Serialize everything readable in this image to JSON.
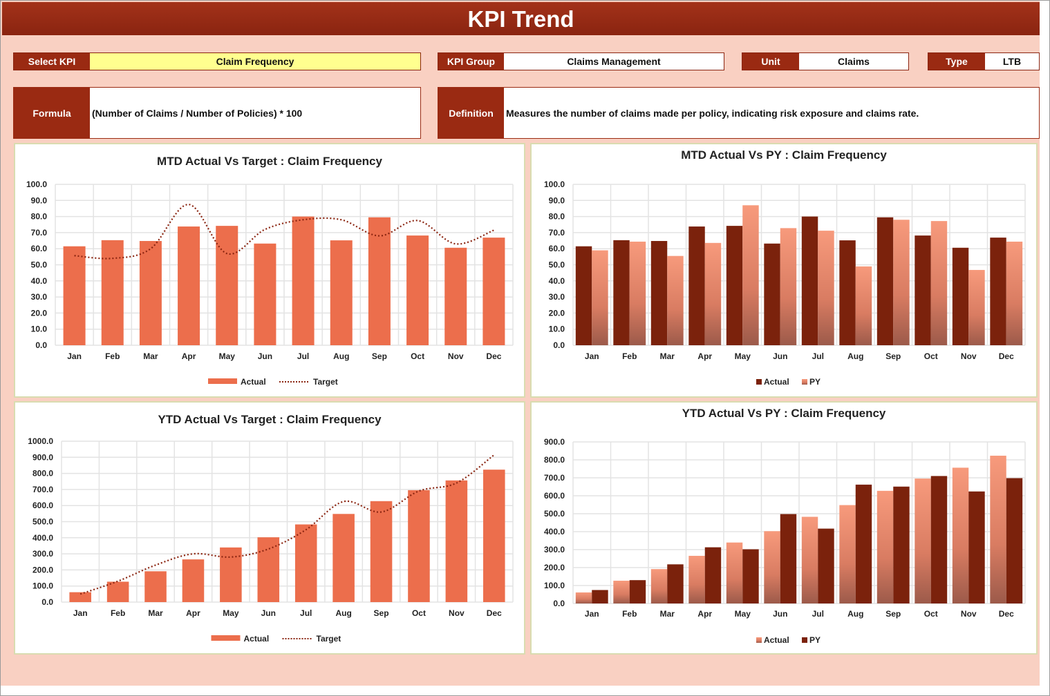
{
  "header": {
    "title": "KPI Trend"
  },
  "controls": {
    "select_kpi_label": "Select KPI",
    "select_kpi_value": "Claim Frequency",
    "kpi_group_label": "KPI Group",
    "kpi_group_value": "Claims Management",
    "unit_label": "Unit",
    "unit_value": "Claims",
    "type_label": "Type",
    "type_value": "LTB"
  },
  "info": {
    "formula_label": "Formula",
    "formula_value": "(Number of Claims / Number of Policies) * 100",
    "definition_label": "Definition",
    "definition_value": "Measures the number of claims made per policy, indicating risk exposure and claims rate."
  },
  "colors": {
    "accent": "#9a2a12",
    "actual_bar": "#ec6e4c",
    "dark_bar": "#7b220c",
    "light_bar": "#f4977a",
    "background": "#f9d0c2",
    "highlight": "#ffff8f"
  },
  "chart_data": [
    {
      "id": "mtd-target",
      "type": "bar",
      "title": "MTD Actual Vs Target : Claim Frequency",
      "categories": [
        "Jan",
        "Feb",
        "Mar",
        "Apr",
        "May",
        "Jun",
        "Jul",
        "Aug",
        "Sep",
        "Oct",
        "Nov",
        "Dec"
      ],
      "ylim": [
        0,
        100
      ],
      "yticks": [
        "0.0",
        "10.0",
        "20.0",
        "30.0",
        "40.0",
        "50.0",
        "60.0",
        "70.0",
        "80.0",
        "90.0",
        "100.0"
      ],
      "grid": true,
      "legend": "bottom",
      "series": [
        {
          "name": "Actual",
          "kind": "bar",
          "values": [
            61.5,
            65.3,
            64.8,
            73.8,
            74.2,
            63.2,
            80.0,
            65.2,
            79.5,
            68.2,
            60.6,
            66.9
          ]
        },
        {
          "name": "Target",
          "kind": "line",
          "values": [
            55.7,
            54.0,
            60.0,
            87.5,
            57.0,
            72.0,
            78.0,
            78.0,
            68.0,
            77.5,
            63.0,
            71.5
          ]
        }
      ]
    },
    {
      "id": "mtd-py",
      "type": "bar",
      "title": "MTD Actual Vs PY : Claim Frequency",
      "categories": [
        "Jan",
        "Feb",
        "Mar",
        "Apr",
        "May",
        "Jun",
        "Jul",
        "Aug",
        "Sep",
        "Oct",
        "Nov",
        "Dec"
      ],
      "ylim": [
        0,
        100
      ],
      "yticks": [
        "0.0",
        "10.0",
        "20.0",
        "30.0",
        "40.0",
        "50.0",
        "60.0",
        "70.0",
        "80.0",
        "90.0",
        "100.0"
      ],
      "grid": true,
      "legend": "bottom",
      "series": [
        {
          "name": "Actual",
          "kind": "bar",
          "values": [
            61.5,
            65.3,
            64.8,
            73.8,
            74.2,
            63.2,
            80.0,
            65.2,
            79.5,
            68.2,
            60.6,
            66.9
          ]
        },
        {
          "name": "PY",
          "kind": "bar",
          "values": [
            59.0,
            64.4,
            55.5,
            63.6,
            87.0,
            72.8,
            71.2,
            49.0,
            78.0,
            77.2,
            46.8,
            64.4
          ]
        }
      ]
    },
    {
      "id": "ytd-target",
      "type": "bar",
      "title": "YTD Actual Vs Target : Claim Frequency",
      "categories": [
        "Jan",
        "Feb",
        "Mar",
        "Apr",
        "May",
        "Jun",
        "Jul",
        "Aug",
        "Sep",
        "Oct",
        "Nov",
        "Dec"
      ],
      "ylim": [
        0,
        1000
      ],
      "yticks": [
        "0.0",
        "100.0",
        "200.0",
        "300.0",
        "400.0",
        "500.0",
        "600.0",
        "700.0",
        "800.0",
        "900.0",
        "1000.0"
      ],
      "grid": true,
      "legend": "bottom",
      "series": [
        {
          "name": "Actual",
          "kind": "bar",
          "values": [
            61.5,
            126.8,
            191.6,
            265.4,
            339.6,
            402.8,
            482.8,
            548.0,
            627.5,
            695.7,
            756.3,
            823.2
          ]
        },
        {
          "name": "Target",
          "kind": "line",
          "values": [
            50,
            130,
            230,
            300,
            280,
            330,
            450,
            625,
            560,
            690,
            740,
            915
          ]
        }
      ]
    },
    {
      "id": "ytd-py",
      "type": "bar",
      "title": "YTD Actual Vs PY : Claim Frequency",
      "categories": [
        "Jan",
        "Feb",
        "Mar",
        "Apr",
        "May",
        "Jun",
        "Jul",
        "Aug",
        "Sep",
        "Oct",
        "Nov",
        "Dec"
      ],
      "ylim": [
        0,
        900
      ],
      "yticks": [
        "0.0",
        "100.0",
        "200.0",
        "300.0",
        "400.0",
        "500.0",
        "600.0",
        "700.0",
        "800.0",
        "900.0"
      ],
      "grid": true,
      "legend": "bottom",
      "series": [
        {
          "name": "Actual",
          "kind": "bar",
          "values": [
            61.5,
            126.8,
            191.6,
            265.4,
            339.6,
            402.8,
            482.8,
            548.0,
            627.5,
            695.7,
            756.3,
            823.2
          ]
        },
        {
          "name": "PY",
          "kind": "bar",
          "values": [
            75,
            130,
            218,
            313,
            302,
            498,
            417,
            662,
            651,
            710,
            624,
            698
          ]
        }
      ]
    }
  ]
}
